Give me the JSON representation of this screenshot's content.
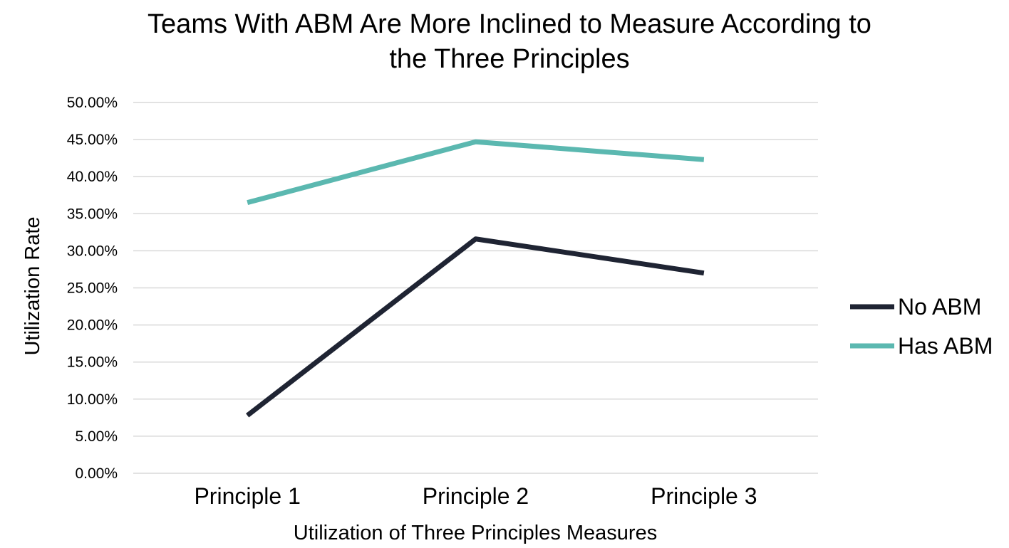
{
  "chart_data": {
    "type": "line",
    "title": "Teams With ABM Are More Inclined to Measure According to the Three Principles",
    "title_lines": [
      "Teams With ABM Are More Inclined to Measure According to",
      "the Three Principles"
    ],
    "xlabel": "Utilization of Three Principles Measures",
    "ylabel": "Utilization Rate",
    "categories": [
      "Principle 1",
      "Principle 2",
      "Principle 3"
    ],
    "ylim": [
      0,
      0.5
    ],
    "ytick_values": [
      0,
      0.05,
      0.1,
      0.15,
      0.2,
      0.25,
      0.3,
      0.35,
      0.4,
      0.45,
      0.5
    ],
    "ytick_labels": [
      "0.00%",
      "5.00%",
      "10.00%",
      "15.00%",
      "20.00%",
      "25.00%",
      "30.00%",
      "35.00%",
      "40.00%",
      "45.00%",
      "50.00%"
    ],
    "grid": true,
    "legend_position": "right",
    "series": [
      {
        "name": "No ABM",
        "color": "#1f2433",
        "values": [
          0.078,
          0.316,
          0.27
        ]
      },
      {
        "name": "Has ABM",
        "color": "#5bb8b0",
        "values": [
          0.365,
          0.447,
          0.423
        ]
      }
    ]
  }
}
